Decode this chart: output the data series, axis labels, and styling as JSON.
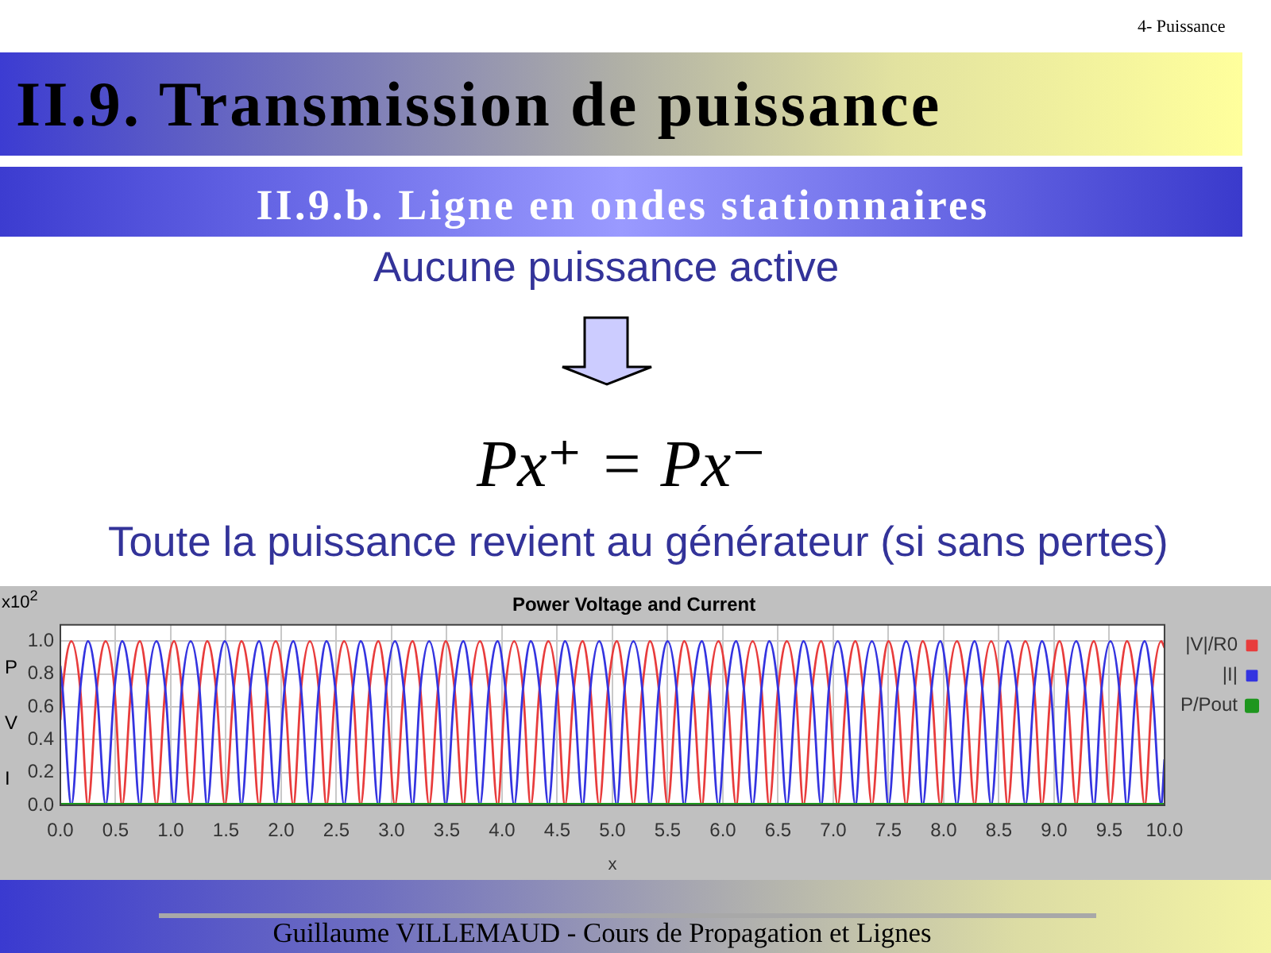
{
  "chart_data": {
    "type": "line",
    "title": "Power Voltage and Current",
    "xlabel": "x",
    "ylabel": "P V I",
    "annotations": [
      "4- Puissance",
      "II.9. Transmission de puissance",
      "II.9.b. Ligne en ondes stationnaires",
      "Aucune puissance active",
      "Px⁺ = Px⁻",
      "Toute la puissance revient au générateur (si sans pertes)",
      "x10$^{2}$",
      "Guillaume VILLEMAUD - Cours de Propagation et Lignes"
    ],
    "x": [
      0,
      0.02,
      0.1,
      0.18,
      0.25,
      0.33,
      0.41,
      0.49,
      0.56,
      0.64,
      0.72,
      0.79,
      0.87,
      0.95,
      1.03,
      1.1,
      1.18,
      1.26,
      1.33,
      1.41,
      1.49,
      1.57,
      1.64,
      1.72,
      1.8,
      1.87,
      1.95,
      2.03,
      2.11,
      2.18,
      2.26,
      2.34,
      2.41,
      2.49,
      2.57,
      2.65,
      2.72,
      2.8,
      2.88,
      2.95,
      3.03,
      3.11,
      3.19,
      3.26,
      3.34,
      3.42,
      3.49,
      3.57,
      3.65,
      3.72,
      3.8,
      3.88,
      3.96,
      4.03,
      4.11,
      4.19,
      4.26,
      4.34,
      4.42,
      4.5,
      4.57,
      4.65,
      4.73,
      4.8,
      4.88,
      4.96,
      5.04,
      5.11,
      5.19,
      5.27,
      5.34,
      5.42,
      5.5,
      5.58,
      5.65,
      5.73,
      5.81,
      5.88,
      5.96,
      6.04,
      6.12,
      6.19,
      6.27,
      6.35,
      6.42,
      6.5,
      6.58,
      6.66,
      6.73,
      6.81,
      6.89,
      6.96,
      7.04,
      7.12,
      7.2,
      7.27,
      7.35,
      7.43,
      7.5,
      7.58,
      7.66,
      7.74,
      7.81,
      7.89,
      7.97,
      8.04,
      8.12,
      8.2,
      8.28,
      8.35,
      8.43,
      8.51,
      8.58,
      8.66,
      8.74,
      8.82,
      8.89,
      8.97,
      9.05,
      9.12,
      9.2,
      9.28,
      9.36,
      9.43,
      9.51,
      9.59,
      9.66,
      9.74,
      9.82,
      9.89,
      9.97,
      10
    ],
    "series": [
      {
        "name": "|V|/R0",
        "color": "#e83c3c",
        "values": [
          0.52,
          0.71,
          1,
          0.71,
          0,
          0.71,
          1,
          0.71,
          0,
          0.71,
          1,
          0.71,
          0,
          0.71,
          1,
          0.71,
          0,
          0.71,
          1,
          0.71,
          0,
          0.71,
          1,
          0.71,
          0,
          0.71,
          1,
          0.71,
          0,
          0.71,
          1,
          0.71,
          0,
          0.71,
          1,
          0.71,
          0,
          0.71,
          1,
          0.71,
          0,
          0.71,
          1,
          0.71,
          0,
          0.71,
          1,
          0.71,
          0,
          0.71,
          1,
          0.71,
          0,
          0.71,
          1,
          0.71,
          0,
          0.71,
          1,
          0.71,
          0,
          0.71,
          1,
          0.71,
          0,
          0.71,
          1,
          0.71,
          0,
          0.71,
          1,
          0.71,
          0,
          0.71,
          1,
          0.71,
          0,
          0.71,
          1,
          0.71,
          0,
          0.71,
          1,
          0.71,
          0,
          0.71,
          1,
          0.71,
          0,
          0.71,
          1,
          0.71,
          0,
          0.71,
          1,
          0.71,
          0,
          0.71,
          1,
          0.71,
          0,
          0.71,
          1,
          0.71,
          0,
          0.71,
          1,
          0.71,
          0,
          0.71,
          1,
          0.71,
          0,
          0.71,
          1,
          0.71,
          0,
          0.71,
          1,
          0.71,
          0,
          0.71,
          1,
          0.71,
          0,
          0.71,
          1,
          0.71,
          0,
          0.71,
          1,
          0.96
        ]
      },
      {
        "name": "|I|",
        "color": "#3434e0",
        "values": [
          0.85,
          0.71,
          0,
          0.71,
          1,
          0.71,
          0,
          0.71,
          1,
          0.71,
          0,
          0.71,
          1,
          0.71,
          0,
          0.71,
          1,
          0.71,
          0,
          0.71,
          1,
          0.71,
          0,
          0.71,
          1,
          0.71,
          0,
          0.71,
          1,
          0.71,
          0,
          0.71,
          1,
          0.71,
          0,
          0.71,
          1,
          0.71,
          0,
          0.71,
          1,
          0.71,
          0,
          0.71,
          1,
          0.71,
          0,
          0.71,
          1,
          0.71,
          0,
          0.71,
          1,
          0.71,
          0,
          0.71,
          1,
          0.71,
          0,
          0.71,
          1,
          0.71,
          0,
          0.71,
          1,
          0.71,
          0,
          0.71,
          1,
          0.71,
          0,
          0.71,
          1,
          0.71,
          0,
          0.71,
          1,
          0.71,
          0,
          0.71,
          1,
          0.71,
          0,
          0.71,
          1,
          0.71,
          0,
          0.71,
          1,
          0.71,
          0,
          0.71,
          1,
          0.71,
          0,
          0.71,
          1,
          0.71,
          0,
          0.71,
          1,
          0.71,
          0,
          0.71,
          1,
          0.71,
          0,
          0.71,
          1,
          0.71,
          0,
          0.71,
          1,
          0.71,
          0,
          0.71,
          1,
          0.71,
          0,
          0.71,
          1,
          0.71,
          0,
          0.71,
          1,
          0.71,
          0,
          0.71,
          1,
          0.71,
          0,
          0.28
        ]
      },
      {
        "name": "P/Pout",
        "color": "#1e961e",
        "x": [
          0,
          10
        ],
        "values": [
          0,
          0
        ]
      }
    ],
    "xlim": [
      0,
      10
    ],
    "ylim": [
      0,
      1.1
    ],
    "xticks": [
      {
        "value": 0,
        "label": "0.0"
      },
      0.5,
      {
        "value": 1,
        "label": "1.0"
      },
      1.5,
      {
        "value": 2,
        "label": "2.0"
      },
      2.5,
      {
        "value": 3,
        "label": "3.0"
      },
      3.5,
      {
        "value": 4,
        "label": "4.0"
      },
      4.5,
      {
        "value": 5,
        "label": "5.0"
      },
      5.5,
      {
        "value": 6,
        "label": "6.0"
      },
      6.5,
      {
        "value": 7,
        "label": "7.0"
      },
      7.5,
      {
        "value": 8,
        "label": "8.0"
      },
      8.5,
      {
        "value": 9,
        "label": "9.0"
      },
      9.5,
      {
        "value": 10,
        "label": "10.0"
      }
    ],
    "yticks": [
      {
        "value": 0,
        "label": "0.0"
      },
      0.2,
      0.4,
      0.6,
      0.8,
      {
        "value": 1,
        "label": "1.0"
      }
    ],
    "grid": true,
    "legend": "top right",
    "marker": "none"
  }
}
